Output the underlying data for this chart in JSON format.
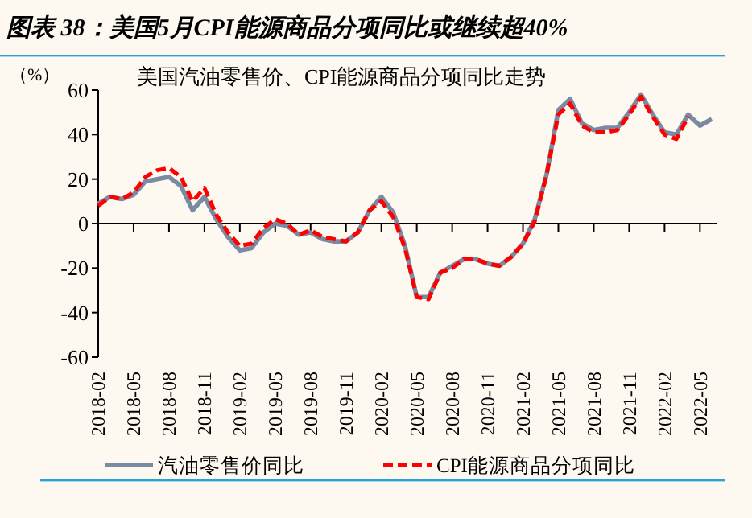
{
  "chart_data": {
    "type": "line",
    "title": "图表 38：美国5月CPI能源商品分项同比或继续超40%",
    "subtitle": "美国汽油零售价、CPI能源商品分项同比走势",
    "ylabel": "（%）",
    "categories": [
      "2018-02",
      null,
      null,
      "2018-05",
      null,
      null,
      "2018-08",
      null,
      null,
      "2018-11",
      null,
      null,
      "2019-02",
      null,
      null,
      "2019-05",
      null,
      null,
      "2019-08",
      null,
      null,
      "2019-11",
      null,
      null,
      "2020-02",
      null,
      null,
      "2020-05",
      null,
      null,
      "2020-08",
      null,
      null,
      "2020-11",
      null,
      null,
      "2021-02",
      null,
      null,
      "2021-05",
      null,
      null,
      "2021-08",
      null,
      null,
      "2021-11",
      null,
      null,
      "2022-02",
      null,
      null,
      "2022-05",
      null
    ],
    "series": [
      {
        "name": "汽油零售价同比",
        "color": "#7a8aa3",
        "line_style": "solid",
        "values": [
          9,
          12,
          11,
          13,
          19,
          20,
          21,
          17,
          6,
          12,
          2,
          -6,
          -12,
          -11,
          -4,
          0,
          -1,
          -5,
          -4,
          -7,
          -8,
          -8,
          -4,
          6,
          12,
          5,
          -10,
          -33,
          -33,
          -22,
          -19,
          -16,
          -16,
          -18,
          -19,
          -15,
          -9,
          2,
          22,
          51,
          56,
          45,
          42,
          43,
          43,
          50,
          58,
          49,
          41,
          40,
          49,
          44,
          47
        ]
      },
      {
        "name": "CPI能源商品分项同比",
        "color": "#ff0000",
        "line_style": "dashed",
        "values": [
          8,
          12,
          11,
          14,
          21,
          24,
          25,
          21,
          10,
          16,
          4,
          -4,
          -10,
          -9,
          -2,
          2,
          0,
          -5,
          -3,
          -6,
          -7,
          -8,
          -4,
          6,
          10,
          3,
          -11,
          -33,
          -34,
          -22,
          -20,
          -16,
          -16,
          -18,
          -19,
          -15,
          -9,
          1,
          22,
          49,
          54,
          44,
          41,
          41,
          42,
          49,
          57,
          48,
          40,
          38,
          48,
          null,
          null
        ]
      }
    ],
    "ylim": [
      -60,
      60
    ],
    "yticks": [
      -60,
      -40,
      -20,
      0,
      20,
      40,
      60
    ],
    "legend": "bottom"
  }
}
